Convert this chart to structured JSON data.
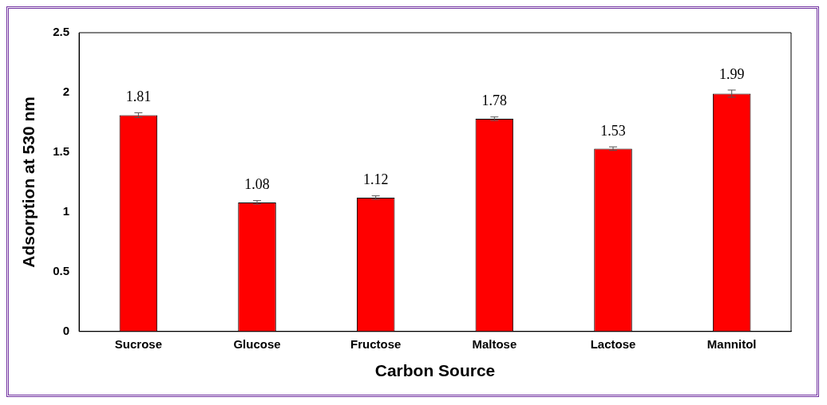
{
  "chart_data": {
    "type": "bar",
    "xlabel": "Carbon Source",
    "ylabel": "Adsorption at 530 nm",
    "categories": [
      "Sucrose",
      "Glucose",
      "Fructose",
      "Maltose",
      "Lactose",
      "Mannitol"
    ],
    "values": [
      1.81,
      1.08,
      1.12,
      1.78,
      1.53,
      1.99
    ],
    "errors": [
      0.02,
      0.015,
      0.015,
      0.015,
      0.015,
      0.03
    ],
    "color": "#ff0000",
    "ylim": [
      0,
      2.5
    ],
    "yticks": [
      0,
      0.5,
      1,
      1.5,
      2,
      2.5
    ],
    "grid": false,
    "legend": false,
    "data_labels": true
  }
}
